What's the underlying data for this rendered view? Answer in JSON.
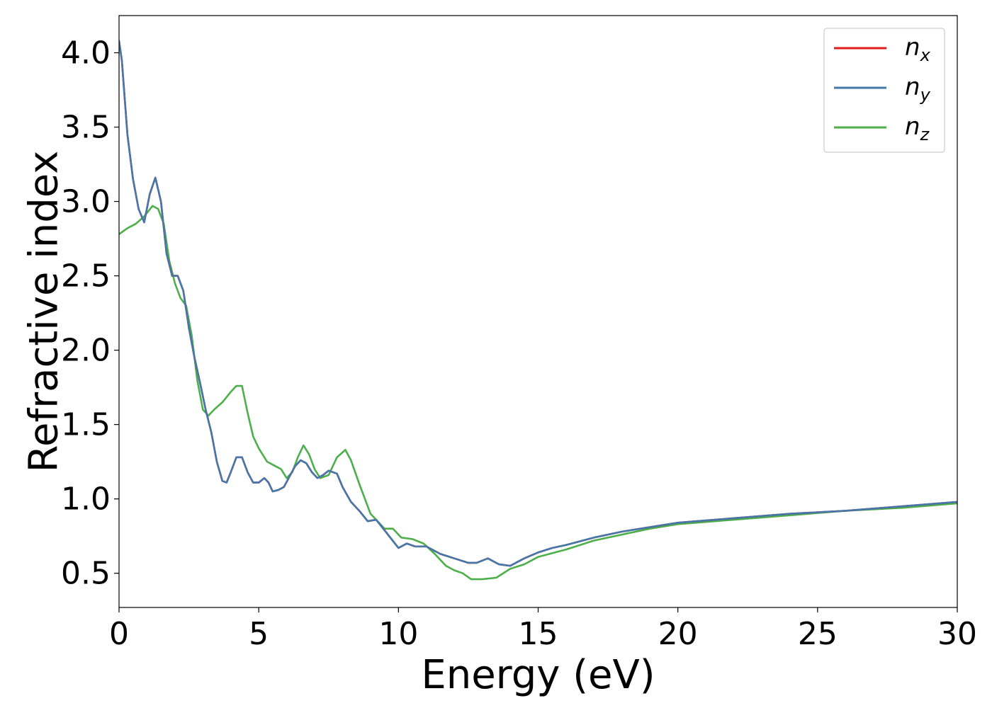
{
  "chart_data": {
    "type": "line",
    "title": "",
    "xlabel": "Energy (eV)",
    "ylabel": "Refractive index",
    "xlim": [
      0,
      30
    ],
    "ylim": [
      0.27,
      4.25
    ],
    "xticks": [
      0,
      5,
      10,
      15,
      20,
      25,
      30
    ],
    "xtick_labels": [
      "0",
      "5",
      "10",
      "15",
      "20",
      "25",
      "30"
    ],
    "yticks": [
      0.5,
      1.0,
      1.5,
      2.0,
      2.5,
      3.0,
      3.5,
      4.0
    ],
    "ytick_labels": [
      "0.5",
      "1.0",
      "1.5",
      "2.0",
      "2.5",
      "3.0",
      "3.5",
      "4.0"
    ],
    "grid": false,
    "legend_position": "top-right",
    "series": [
      {
        "name": "n_x",
        "legend_base": "n",
        "legend_sub": "x",
        "color": "#e41a1c",
        "x": [
          0.0,
          0.1,
          0.3,
          0.5,
          0.7,
          0.9,
          1.1,
          1.3,
          1.5,
          1.7,
          1.9,
          2.1,
          2.3,
          2.5,
          2.7,
          2.9,
          3.1,
          3.3,
          3.5,
          3.7,
          3.85,
          4.0,
          4.2,
          4.4,
          4.6,
          4.8,
          5.0,
          5.2,
          5.35,
          5.5,
          5.7,
          5.9,
          6.1,
          6.3,
          6.5,
          6.7,
          6.9,
          7.1,
          7.3,
          7.5,
          7.8,
          8.0,
          8.3,
          8.6,
          8.9,
          9.2,
          9.5,
          10.0,
          10.3,
          10.6,
          11.0,
          11.5,
          12.0,
          12.5,
          12.8,
          13.2,
          13.6,
          14.0,
          14.5,
          15.0,
          15.5,
          16.0,
          17.0,
          18.0,
          19.0,
          20.0,
          22.0,
          24.0,
          26.0,
          28.0,
          30.0
        ],
        "values": [
          4.08,
          3.95,
          3.45,
          3.15,
          2.95,
          2.86,
          3.05,
          3.16,
          3.0,
          2.65,
          2.5,
          2.5,
          2.4,
          2.15,
          1.95,
          1.78,
          1.6,
          1.45,
          1.25,
          1.12,
          1.11,
          1.18,
          1.28,
          1.28,
          1.18,
          1.11,
          1.11,
          1.14,
          1.11,
          1.05,
          1.06,
          1.08,
          1.15,
          1.22,
          1.26,
          1.24,
          1.18,
          1.14,
          1.16,
          1.19,
          1.17,
          1.08,
          0.98,
          0.92,
          0.85,
          0.86,
          0.79,
          0.67,
          0.7,
          0.68,
          0.68,
          0.63,
          0.6,
          0.57,
          0.57,
          0.6,
          0.56,
          0.55,
          0.6,
          0.64,
          0.67,
          0.69,
          0.74,
          0.78,
          0.81,
          0.84,
          0.87,
          0.9,
          0.92,
          0.95,
          0.98
        ]
      },
      {
        "name": "n_y",
        "legend_base": "n",
        "legend_sub": "y",
        "color": "#4477aa",
        "x": [
          0.0,
          0.1,
          0.3,
          0.5,
          0.7,
          0.9,
          1.1,
          1.3,
          1.5,
          1.7,
          1.9,
          2.1,
          2.3,
          2.5,
          2.7,
          2.9,
          3.1,
          3.3,
          3.5,
          3.7,
          3.85,
          4.0,
          4.2,
          4.4,
          4.6,
          4.8,
          5.0,
          5.2,
          5.35,
          5.5,
          5.7,
          5.9,
          6.1,
          6.3,
          6.5,
          6.7,
          6.9,
          7.1,
          7.3,
          7.5,
          7.8,
          8.0,
          8.3,
          8.6,
          8.9,
          9.2,
          9.5,
          10.0,
          10.3,
          10.6,
          11.0,
          11.5,
          12.0,
          12.5,
          12.8,
          13.2,
          13.6,
          14.0,
          14.5,
          15.0,
          15.5,
          16.0,
          17.0,
          18.0,
          19.0,
          20.0,
          22.0,
          24.0,
          26.0,
          28.0,
          30.0
        ],
        "values": [
          4.08,
          3.95,
          3.45,
          3.15,
          2.95,
          2.86,
          3.05,
          3.16,
          3.0,
          2.65,
          2.5,
          2.5,
          2.4,
          2.15,
          1.95,
          1.78,
          1.6,
          1.45,
          1.25,
          1.12,
          1.11,
          1.18,
          1.28,
          1.28,
          1.18,
          1.11,
          1.11,
          1.14,
          1.11,
          1.05,
          1.06,
          1.08,
          1.15,
          1.22,
          1.26,
          1.24,
          1.18,
          1.14,
          1.16,
          1.19,
          1.17,
          1.08,
          0.98,
          0.92,
          0.85,
          0.86,
          0.79,
          0.67,
          0.7,
          0.68,
          0.68,
          0.63,
          0.6,
          0.57,
          0.57,
          0.6,
          0.56,
          0.55,
          0.6,
          0.64,
          0.67,
          0.69,
          0.74,
          0.78,
          0.81,
          0.84,
          0.87,
          0.9,
          0.92,
          0.95,
          0.98
        ]
      },
      {
        "name": "n_z",
        "legend_base": "n",
        "legend_sub": "z",
        "color": "#4daf4a",
        "x": [
          0.0,
          0.3,
          0.6,
          0.9,
          1.2,
          1.4,
          1.6,
          1.8,
          2.0,
          2.2,
          2.4,
          2.6,
          2.8,
          3.0,
          3.2,
          3.4,
          3.7,
          4.0,
          4.2,
          4.4,
          4.6,
          4.8,
          5.0,
          5.3,
          5.6,
          5.8,
          6.0,
          6.2,
          6.4,
          6.6,
          6.8,
          7.0,
          7.2,
          7.5,
          7.8,
          8.1,
          8.3,
          8.6,
          9.0,
          9.5,
          9.8,
          10.1,
          10.5,
          10.9,
          11.3,
          11.7,
          12.0,
          12.3,
          12.6,
          13.0,
          13.5,
          14.0,
          14.5,
          15.0,
          16.0,
          17.0,
          18.0,
          19.0,
          20.0,
          22.0,
          24.0,
          26.0,
          28.0,
          30.0
        ],
        "values": [
          2.78,
          2.82,
          2.85,
          2.9,
          2.97,
          2.95,
          2.85,
          2.6,
          2.45,
          2.35,
          2.3,
          2.1,
          1.8,
          1.6,
          1.56,
          1.6,
          1.65,
          1.72,
          1.76,
          1.76,
          1.58,
          1.42,
          1.34,
          1.25,
          1.22,
          1.2,
          1.14,
          1.18,
          1.28,
          1.36,
          1.3,
          1.2,
          1.14,
          1.16,
          1.28,
          1.33,
          1.26,
          1.1,
          0.9,
          0.8,
          0.8,
          0.74,
          0.73,
          0.7,
          0.63,
          0.55,
          0.52,
          0.5,
          0.46,
          0.46,
          0.47,
          0.53,
          0.56,
          0.61,
          0.66,
          0.72,
          0.76,
          0.8,
          0.83,
          0.86,
          0.89,
          0.92,
          0.94,
          0.97
        ]
      }
    ]
  }
}
